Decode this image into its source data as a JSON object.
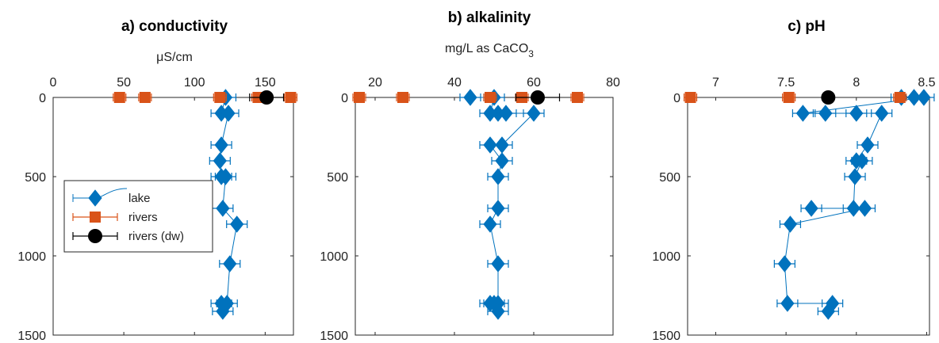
{
  "colors": {
    "lake": "#0072BD",
    "rivers": "#D95319",
    "rivers_dw": "#000000",
    "axis": "#262626"
  },
  "legend": {
    "lake": "lake",
    "rivers": "rivers",
    "rivers_dw": "rivers (dw)"
  },
  "chart_data": [
    {
      "type": "scatter",
      "title": "a) conductivity",
      "xlabel": "μS/cm",
      "xlim": [
        0,
        170
      ],
      "ylim": [
        0,
        1500
      ],
      "y_reversed": true,
      "x_axis_location": "top",
      "xticks": [
        0,
        50,
        100,
        150
      ],
      "yticks": [
        0,
        500,
        1000,
        1500
      ],
      "series": [
        {
          "name": "lake",
          "marker": "diamond",
          "connected": true,
          "x": [
            122,
            119,
            124,
            119,
            118,
            119,
            122,
            120,
            130,
            125,
            123,
            119,
            120
          ],
          "y": [
            0,
            100,
            100,
            300,
            400,
            500,
            500,
            700,
            800,
            1050,
            1300,
            1300,
            1350
          ]
        },
        {
          "name": "rivers",
          "marker": "square",
          "connected": false,
          "x": [
            47,
            65,
            118,
            145,
            168
          ],
          "y": [
            0,
            0,
            0,
            0,
            0
          ]
        },
        {
          "name": "rivers (dw)",
          "marker": "circle",
          "connected": false,
          "x": [
            151
          ],
          "y": [
            0
          ],
          "xerr": [
            12
          ]
        }
      ]
    },
    {
      "type": "scatter",
      "title": "b) alkalinity",
      "xlabel": "mg/L as CaCO3",
      "xlabel_base": "mg/L as CaCO",
      "xlabel_sub": "3",
      "xlim": [
        15,
        80
      ],
      "ylim": [
        0,
        1500
      ],
      "y_reversed": true,
      "x_axis_location": "top",
      "xticks": [
        20,
        40,
        60,
        80
      ],
      "yticks": [
        0,
        500,
        1000,
        1500
      ],
      "series": [
        {
          "name": "lake",
          "marker": "diamond",
          "connected": true,
          "x": [
            44,
            50,
            49,
            51,
            53,
            60,
            52,
            49,
            52,
            51,
            51,
            49,
            51,
            51,
            50,
            49,
            51
          ],
          "y": [
            0,
            0,
            100,
            100,
            100,
            100,
            300,
            300,
            400,
            500,
            700,
            800,
            1050,
            1300,
            1300,
            1300,
            1350
          ]
        },
        {
          "name": "rivers",
          "marker": "square",
          "connected": false,
          "x": [
            16,
            27,
            49,
            57,
            71
          ],
          "y": [
            0,
            0,
            0,
            0,
            0
          ]
        },
        {
          "name": "rivers (dw)",
          "marker": "circle",
          "connected": false,
          "x": [
            61
          ],
          "y": [
            0
          ],
          "xerr": [
            5.5
          ]
        }
      ]
    },
    {
      "type": "scatter",
      "title": "c) pH",
      "xlabel": "",
      "xlim": [
        6.8,
        8.52
      ],
      "ylim": [
        0,
        1500
      ],
      "y_reversed": true,
      "x_axis_location": "top",
      "xticks": [
        7,
        7.5,
        8,
        8.5
      ],
      "yticks": [
        0,
        500,
        1000,
        1500
      ],
      "series": [
        {
          "name": "lake",
          "marker": "diamond",
          "connected": true,
          "x": [
            8.32,
            8.41,
            8.48,
            7.62,
            7.78,
            8.0,
            8.18,
            8.08,
            8.0,
            8.04,
            7.99,
            7.98,
            7.68,
            8.06,
            7.53,
            7.49,
            7.51,
            7.83,
            7.8
          ],
          "y": [
            0,
            0,
            0,
            100,
            100,
            100,
            100,
            300,
            400,
            400,
            500,
            700,
            700,
            700,
            800,
            1050,
            1300,
            1300,
            1350
          ]
        },
        {
          "name": "rivers",
          "marker": "square",
          "connected": false,
          "x": [
            6.82,
            7.52,
            8.31
          ],
          "y": [
            0,
            0,
            0
          ]
        },
        {
          "name": "rivers (dw)",
          "marker": "circle",
          "connected": false,
          "x": [
            7.8
          ],
          "y": [
            0
          ],
          "xerr": [
            0.02
          ]
        }
      ]
    }
  ]
}
